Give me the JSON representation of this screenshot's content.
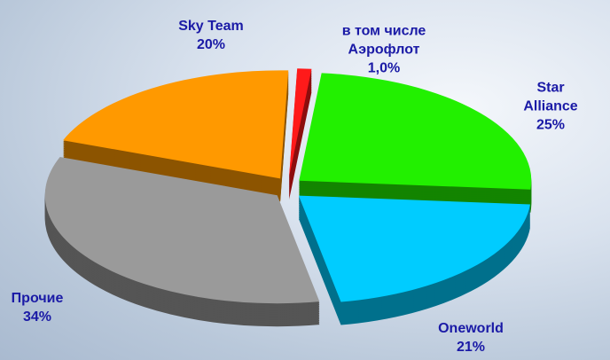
{
  "chart_data": {
    "type": "pie",
    "categories": [
      "в том числе Аэрофлот",
      "Star Alliance",
      "Oneworld",
      "Прочие",
      "Sky Team"
    ],
    "values": [
      1.0,
      25,
      21,
      34,
      20
    ],
    "value_labels": [
      "1,0%",
      "25%",
      "21%",
      "34%",
      "20%"
    ],
    "colors": [
      "#ff1a1a",
      "#22f000",
      "#00ccff",
      "#9a9a9a",
      "#ff9900"
    ]
  }
}
